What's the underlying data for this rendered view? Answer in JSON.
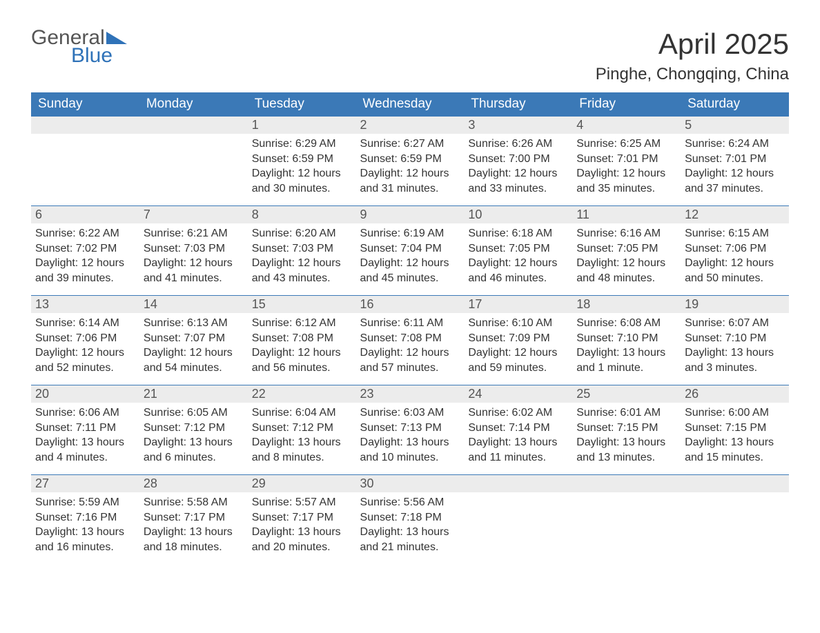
{
  "logo": {
    "word1": "General",
    "word2": "Blue"
  },
  "title": "April 2025",
  "location": "Pinghe, Chongqing, China",
  "colors": {
    "header_bg": "#3b79b7",
    "header_text": "#ffffff",
    "daybar_bg": "#ececec",
    "daybar_border": "#3b79b7",
    "text": "#333333"
  },
  "layout": {
    "columns": 7,
    "rows": 5,
    "first_weekday_index": 2
  },
  "weekdays": [
    "Sunday",
    "Monday",
    "Tuesday",
    "Wednesday",
    "Thursday",
    "Friday",
    "Saturday"
  ],
  "days": [
    {
      "n": 1,
      "sunrise": "6:29 AM",
      "sunset": "6:59 PM",
      "daylight": "12 hours and 30 minutes."
    },
    {
      "n": 2,
      "sunrise": "6:27 AM",
      "sunset": "6:59 PM",
      "daylight": "12 hours and 31 minutes."
    },
    {
      "n": 3,
      "sunrise": "6:26 AM",
      "sunset": "7:00 PM",
      "daylight": "12 hours and 33 minutes."
    },
    {
      "n": 4,
      "sunrise": "6:25 AM",
      "sunset": "7:01 PM",
      "daylight": "12 hours and 35 minutes."
    },
    {
      "n": 5,
      "sunrise": "6:24 AM",
      "sunset": "7:01 PM",
      "daylight": "12 hours and 37 minutes."
    },
    {
      "n": 6,
      "sunrise": "6:22 AM",
      "sunset": "7:02 PM",
      "daylight": "12 hours and 39 minutes."
    },
    {
      "n": 7,
      "sunrise": "6:21 AM",
      "sunset": "7:03 PM",
      "daylight": "12 hours and 41 minutes."
    },
    {
      "n": 8,
      "sunrise": "6:20 AM",
      "sunset": "7:03 PM",
      "daylight": "12 hours and 43 minutes."
    },
    {
      "n": 9,
      "sunrise": "6:19 AM",
      "sunset": "7:04 PM",
      "daylight": "12 hours and 45 minutes."
    },
    {
      "n": 10,
      "sunrise": "6:18 AM",
      "sunset": "7:05 PM",
      "daylight": "12 hours and 46 minutes."
    },
    {
      "n": 11,
      "sunrise": "6:16 AM",
      "sunset": "7:05 PM",
      "daylight": "12 hours and 48 minutes."
    },
    {
      "n": 12,
      "sunrise": "6:15 AM",
      "sunset": "7:06 PM",
      "daylight": "12 hours and 50 minutes."
    },
    {
      "n": 13,
      "sunrise": "6:14 AM",
      "sunset": "7:06 PM",
      "daylight": "12 hours and 52 minutes."
    },
    {
      "n": 14,
      "sunrise": "6:13 AM",
      "sunset": "7:07 PM",
      "daylight": "12 hours and 54 minutes."
    },
    {
      "n": 15,
      "sunrise": "6:12 AM",
      "sunset": "7:08 PM",
      "daylight": "12 hours and 56 minutes."
    },
    {
      "n": 16,
      "sunrise": "6:11 AM",
      "sunset": "7:08 PM",
      "daylight": "12 hours and 57 minutes."
    },
    {
      "n": 17,
      "sunrise": "6:10 AM",
      "sunset": "7:09 PM",
      "daylight": "12 hours and 59 minutes."
    },
    {
      "n": 18,
      "sunrise": "6:08 AM",
      "sunset": "7:10 PM",
      "daylight": "13 hours and 1 minute."
    },
    {
      "n": 19,
      "sunrise": "6:07 AM",
      "sunset": "7:10 PM",
      "daylight": "13 hours and 3 minutes."
    },
    {
      "n": 20,
      "sunrise": "6:06 AM",
      "sunset": "7:11 PM",
      "daylight": "13 hours and 4 minutes."
    },
    {
      "n": 21,
      "sunrise": "6:05 AM",
      "sunset": "7:12 PM",
      "daylight": "13 hours and 6 minutes."
    },
    {
      "n": 22,
      "sunrise": "6:04 AM",
      "sunset": "7:12 PM",
      "daylight": "13 hours and 8 minutes."
    },
    {
      "n": 23,
      "sunrise": "6:03 AM",
      "sunset": "7:13 PM",
      "daylight": "13 hours and 10 minutes."
    },
    {
      "n": 24,
      "sunrise": "6:02 AM",
      "sunset": "7:14 PM",
      "daylight": "13 hours and 11 minutes."
    },
    {
      "n": 25,
      "sunrise": "6:01 AM",
      "sunset": "7:15 PM",
      "daylight": "13 hours and 13 minutes."
    },
    {
      "n": 26,
      "sunrise": "6:00 AM",
      "sunset": "7:15 PM",
      "daylight": "13 hours and 15 minutes."
    },
    {
      "n": 27,
      "sunrise": "5:59 AM",
      "sunset": "7:16 PM",
      "daylight": "13 hours and 16 minutes."
    },
    {
      "n": 28,
      "sunrise": "5:58 AM",
      "sunset": "7:17 PM",
      "daylight": "13 hours and 18 minutes."
    },
    {
      "n": 29,
      "sunrise": "5:57 AM",
      "sunset": "7:17 PM",
      "daylight": "13 hours and 20 minutes."
    },
    {
      "n": 30,
      "sunrise": "5:56 AM",
      "sunset": "7:18 PM",
      "daylight": "13 hours and 21 minutes."
    }
  ],
  "labels": {
    "sunrise": "Sunrise:",
    "sunset": "Sunset:",
    "daylight": "Daylight:"
  }
}
